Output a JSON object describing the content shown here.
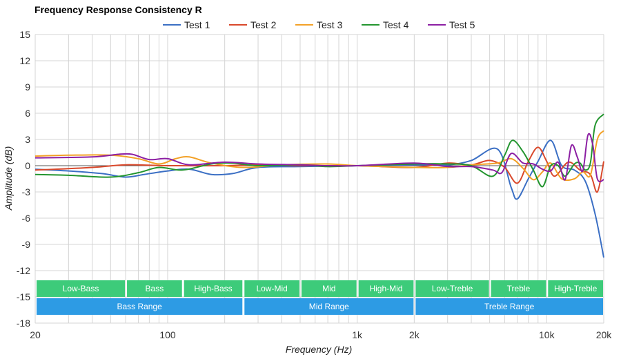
{
  "chart_data": {
    "type": "line",
    "title": "Frequency Response Consistency R",
    "xlabel": "Frequency (Hz)",
    "ylabel": "Amplitude (dB)",
    "x_scale": "log",
    "xlim": [
      20,
      20000
    ],
    "ylim": [
      -18,
      15
    ],
    "grid": true,
    "legend_position": "top",
    "x_ticks": [
      {
        "value": 20,
        "label": "20"
      },
      {
        "value": 100,
        "label": "100"
      },
      {
        "value": 1000,
        "label": "1k"
      },
      {
        "value": 2000,
        "label": "2k"
      },
      {
        "value": 10000,
        "label": "10k"
      },
      {
        "value": 20000,
        "label": "20k"
      }
    ],
    "y_ticks": [
      15,
      12,
      9,
      6,
      3,
      0,
      -3,
      -6,
      -9,
      -12,
      -15,
      -18
    ],
    "series": [
      {
        "name": "Test 1",
        "color": "#3b6fc4",
        "points": [
          [
            20,
            -0.4
          ],
          [
            30,
            -0.6
          ],
          [
            45,
            -0.9
          ],
          [
            60,
            -1.3
          ],
          [
            75,
            -1.0
          ],
          [
            100,
            -0.6
          ],
          [
            130,
            -0.4
          ],
          [
            170,
            -1.0
          ],
          [
            220,
            -0.9
          ],
          [
            300,
            -0.2
          ],
          [
            500,
            -0.1
          ],
          [
            1000,
            0
          ],
          [
            2000,
            0.1
          ],
          [
            3000,
            0.1
          ],
          [
            4000,
            0.6
          ],
          [
            5500,
            1.9
          ],
          [
            6500,
            -2.5
          ],
          [
            7000,
            -3.8
          ],
          [
            8000,
            -1.5
          ],
          [
            9000,
            0.5
          ],
          [
            10500,
            2.9
          ],
          [
            12000,
            0.0
          ],
          [
            14000,
            -0.5
          ],
          [
            16000,
            -1.8
          ],
          [
            18000,
            -5.5
          ],
          [
            20000,
            -10.5
          ]
        ]
      },
      {
        "name": "Test 2",
        "color": "#d9482b",
        "points": [
          [
            20,
            -0.5
          ],
          [
            40,
            -0.2
          ],
          [
            60,
            0.1
          ],
          [
            100,
            0.0
          ],
          [
            200,
            0.0
          ],
          [
            300,
            0.1
          ],
          [
            500,
            0.0
          ],
          [
            1000,
            0.0
          ],
          [
            2000,
            -0.2
          ],
          [
            3000,
            0.3
          ],
          [
            4000,
            0.1
          ],
          [
            5000,
            0.6
          ],
          [
            6000,
            -0.2
          ],
          [
            7000,
            -2.0
          ],
          [
            8000,
            0.5
          ],
          [
            9000,
            2.1
          ],
          [
            10000,
            0.5
          ],
          [
            11000,
            -1.2
          ],
          [
            13000,
            0.4
          ],
          [
            15000,
            -0.5
          ],
          [
            17000,
            -1.0
          ],
          [
            18500,
            -3.0
          ],
          [
            20000,
            0.5
          ]
        ]
      },
      {
        "name": "Test 3",
        "color": "#f3a127",
        "points": [
          [
            20,
            1.1
          ],
          [
            30,
            1.2
          ],
          [
            50,
            1.2
          ],
          [
            70,
            0.8
          ],
          [
            90,
            0.2
          ],
          [
            110,
            0.8
          ],
          [
            130,
            1.0
          ],
          [
            170,
            0.3
          ],
          [
            250,
            -0.2
          ],
          [
            400,
            0.1
          ],
          [
            700,
            0.2
          ],
          [
            1000,
            0.0
          ],
          [
            2000,
            -0.2
          ],
          [
            3000,
            -0.2
          ],
          [
            4000,
            0.1
          ],
          [
            5500,
            0.3
          ],
          [
            6500,
            0.8
          ],
          [
            7500,
            -0.3
          ],
          [
            8500,
            -1.6
          ],
          [
            9500,
            -0.7
          ],
          [
            10500,
            0.3
          ],
          [
            12000,
            -1.5
          ],
          [
            14000,
            -1.5
          ],
          [
            15500,
            -0.7
          ],
          [
            17000,
            -1.1
          ],
          [
            18500,
            3.0
          ],
          [
            20000,
            4.0
          ]
        ]
      },
      {
        "name": "Test 4",
        "color": "#23952f",
        "points": [
          [
            20,
            -1.0
          ],
          [
            30,
            -1.1
          ],
          [
            50,
            -1.3
          ],
          [
            70,
            -0.8
          ],
          [
            90,
            -0.2
          ],
          [
            120,
            -0.5
          ],
          [
            170,
            0.2
          ],
          [
            220,
            0.3
          ],
          [
            300,
            0.0
          ],
          [
            500,
            0.1
          ],
          [
            700,
            -0.1
          ],
          [
            1000,
            0.0
          ],
          [
            2000,
            0.2
          ],
          [
            3000,
            0.2
          ],
          [
            4000,
            0.0
          ],
          [
            5200,
            -1.2
          ],
          [
            6000,
            1.2
          ],
          [
            6600,
            2.9
          ],
          [
            7500,
            1.6
          ],
          [
            8500,
            -0.5
          ],
          [
            9500,
            -2.4
          ],
          [
            10500,
            0.0
          ],
          [
            11500,
            0.0
          ],
          [
            12500,
            -1.2
          ],
          [
            14000,
            0.2
          ],
          [
            15000,
            0.3
          ],
          [
            16000,
            -0.5
          ],
          [
            17000,
            0.3
          ],
          [
            18000,
            4.6
          ],
          [
            20000,
            5.9
          ]
        ]
      },
      {
        "name": "Test 5",
        "color": "#8c1fa3",
        "points": [
          [
            20,
            0.9
          ],
          [
            40,
            1.0
          ],
          [
            55,
            1.3
          ],
          [
            65,
            1.3
          ],
          [
            80,
            0.7
          ],
          [
            100,
            0.8
          ],
          [
            130,
            0.1
          ],
          [
            200,
            0.4
          ],
          [
            300,
            0.2
          ],
          [
            500,
            0.1
          ],
          [
            700,
            0.0
          ],
          [
            1000,
            0.0
          ],
          [
            2000,
            0.3
          ],
          [
            3000,
            -0.1
          ],
          [
            4000,
            -0.1
          ],
          [
            5200,
            -0.5
          ],
          [
            5800,
            -0.8
          ],
          [
            6500,
            1.4
          ],
          [
            7500,
            0.3
          ],
          [
            8500,
            0.2
          ],
          [
            9500,
            -0.4
          ],
          [
            10500,
            -0.6
          ],
          [
            11500,
            0.4
          ],
          [
            12500,
            -1.6
          ],
          [
            13500,
            2.3
          ],
          [
            14500,
            1.0
          ],
          [
            15500,
            -0.6
          ],
          [
            16500,
            3.5
          ],
          [
            17500,
            2.4
          ],
          [
            18500,
            -1.5
          ],
          [
            20000,
            -1.6
          ]
        ]
      }
    ],
    "range_bands": {
      "narrow": [
        {
          "label": "Low-Bass",
          "from": 20,
          "to": 60
        },
        {
          "label": "Bass",
          "from": 60,
          "to": 120
        },
        {
          "label": "High-Bass",
          "from": 120,
          "to": 250
        },
        {
          "label": "Low-Mid",
          "from": 250,
          "to": 500
        },
        {
          "label": "Mid",
          "from": 500,
          "to": 1000
        },
        {
          "label": "High-Mid",
          "from": 1000,
          "to": 2000
        },
        {
          "label": "Low-Treble",
          "from": 2000,
          "to": 5000
        },
        {
          "label": "Treble",
          "from": 5000,
          "to": 10000
        },
        {
          "label": "High-Treble",
          "from": 10000,
          "to": 20000
        }
      ],
      "wide": [
        {
          "label": "Bass Range",
          "from": 20,
          "to": 250
        },
        {
          "label": "Mid Range",
          "from": 250,
          "to": 2000
        },
        {
          "label": "Treble Range",
          "from": 2000,
          "to": 20000
        }
      ],
      "narrow_color": "#3dcb7a",
      "wide_color": "#2d9be4"
    }
  }
}
